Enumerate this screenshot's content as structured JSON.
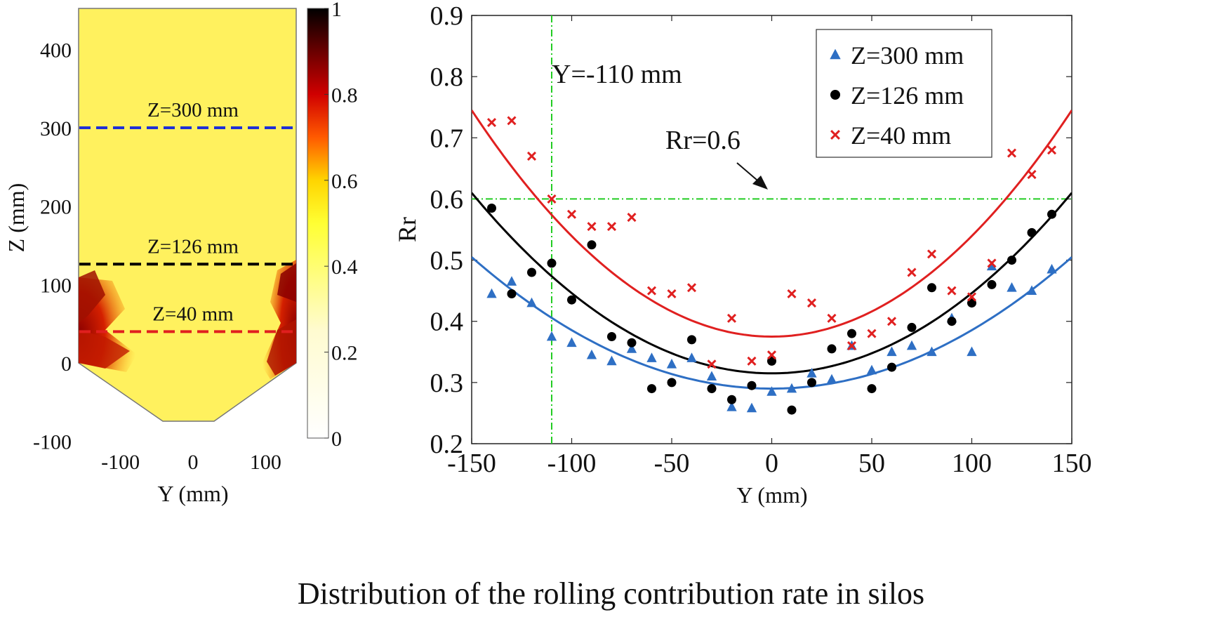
{
  "caption": "Distribution of the rolling contribution rate in silos",
  "chart_data": [
    {
      "type": "heatmap",
      "xlabel": "Y (mm)",
      "ylabel": "Z (mm)",
      "xlim": [
        -150,
        150
      ],
      "ylim": [
        -100,
        450
      ],
      "xticks": [
        "-100",
        "0",
        "100"
      ],
      "yticks": [
        "400",
        "300",
        "200",
        "100",
        "0",
        "-100"
      ],
      "colorbar": {
        "range": [
          0,
          1
        ],
        "ticks": [
          "1",
          "0.8",
          "0.6",
          "0.4",
          "0.2",
          "0"
        ]
      },
      "silo_outline": {
        "half_width": 150,
        "top": 450,
        "cylinder_bottom": 0,
        "hopper_bottom": -80,
        "outlet_half_width": 35
      },
      "reference_lines": [
        {
          "label": "Z=300 mm",
          "z": 300,
          "color": "#1f2fd6"
        },
        {
          "label": "Z=126 mm",
          "z": 126,
          "color": "#000000"
        },
        {
          "label": "Z=40 mm",
          "z": 40,
          "color": "#e01f1f"
        }
      ]
    },
    {
      "type": "scatter",
      "xlabel": "Y (mm)",
      "ylabel": "Rr",
      "xlim": [
        -150,
        150
      ],
      "ylim": [
        0.2,
        0.9
      ],
      "xticks": [
        "-150",
        "-100",
        "-50",
        "0",
        "50",
        "100",
        "150"
      ],
      "yticks": [
        "0.9",
        "0.8",
        "0.7",
        "0.6",
        "0.5",
        "0.4",
        "0.3",
        "0.2"
      ],
      "legend_position": "top-right",
      "annotations": {
        "vline_label": "Y=-110 mm",
        "vline_x": -110,
        "hline_label": "Rr=0.6",
        "hline_y": 0.6,
        "line_color": "#22cc22"
      },
      "x": [
        -140,
        -130,
        -120,
        -110,
        -100,
        -90,
        -80,
        -70,
        -60,
        -50,
        -40,
        -30,
        -20,
        -10,
        0,
        10,
        20,
        30,
        40,
        50,
        60,
        70,
        80,
        90,
        100,
        110,
        120,
        130,
        140
      ],
      "series": [
        {
          "name": "Z=300 mm",
          "marker": "triangle",
          "color": "#2e6fc4",
          "values": [
            0.445,
            0.465,
            0.43,
            0.375,
            0.365,
            0.345,
            0.335,
            0.355,
            0.34,
            0.33,
            0.34,
            0.31,
            0.26,
            0.258,
            0.285,
            0.29,
            0.315,
            0.305,
            0.36,
            0.32,
            0.35,
            0.36,
            0.35,
            0.405,
            0.35,
            0.49,
            0.455,
            0.45,
            0.485
          ],
          "fit": {
            "a": 0.29,
            "c": 0.215
          }
        },
        {
          "name": "Z=126 mm",
          "marker": "circle",
          "color": "#000000",
          "values": [
            0.585,
            0.445,
            0.48,
            0.495,
            0.435,
            0.525,
            0.375,
            0.365,
            0.29,
            0.3,
            0.37,
            0.29,
            0.272,
            0.295,
            0.335,
            0.255,
            0.3,
            0.355,
            0.38,
            0.29,
            0.325,
            0.39,
            0.455,
            0.4,
            0.43,
            0.46,
            0.5,
            0.545,
            0.575
          ],
          "fit": {
            "a": 0.315,
            "c": 0.295
          }
        },
        {
          "name": "Z=40 mm",
          "marker": "cross",
          "color": "#e02020",
          "values": [
            0.725,
            0.728,
            0.67,
            0.6,
            0.575,
            0.555,
            0.555,
            0.57,
            0.45,
            0.445,
            0.455,
            0.33,
            0.405,
            0.335,
            0.345,
            0.445,
            0.43,
            0.405,
            0.36,
            0.38,
            0.4,
            0.48,
            0.51,
            0.45,
            0.44,
            0.495,
            0.675,
            0.64,
            0.68
          ],
          "fit": {
            "a": 0.375,
            "c": 0.37
          }
        }
      ]
    }
  ]
}
